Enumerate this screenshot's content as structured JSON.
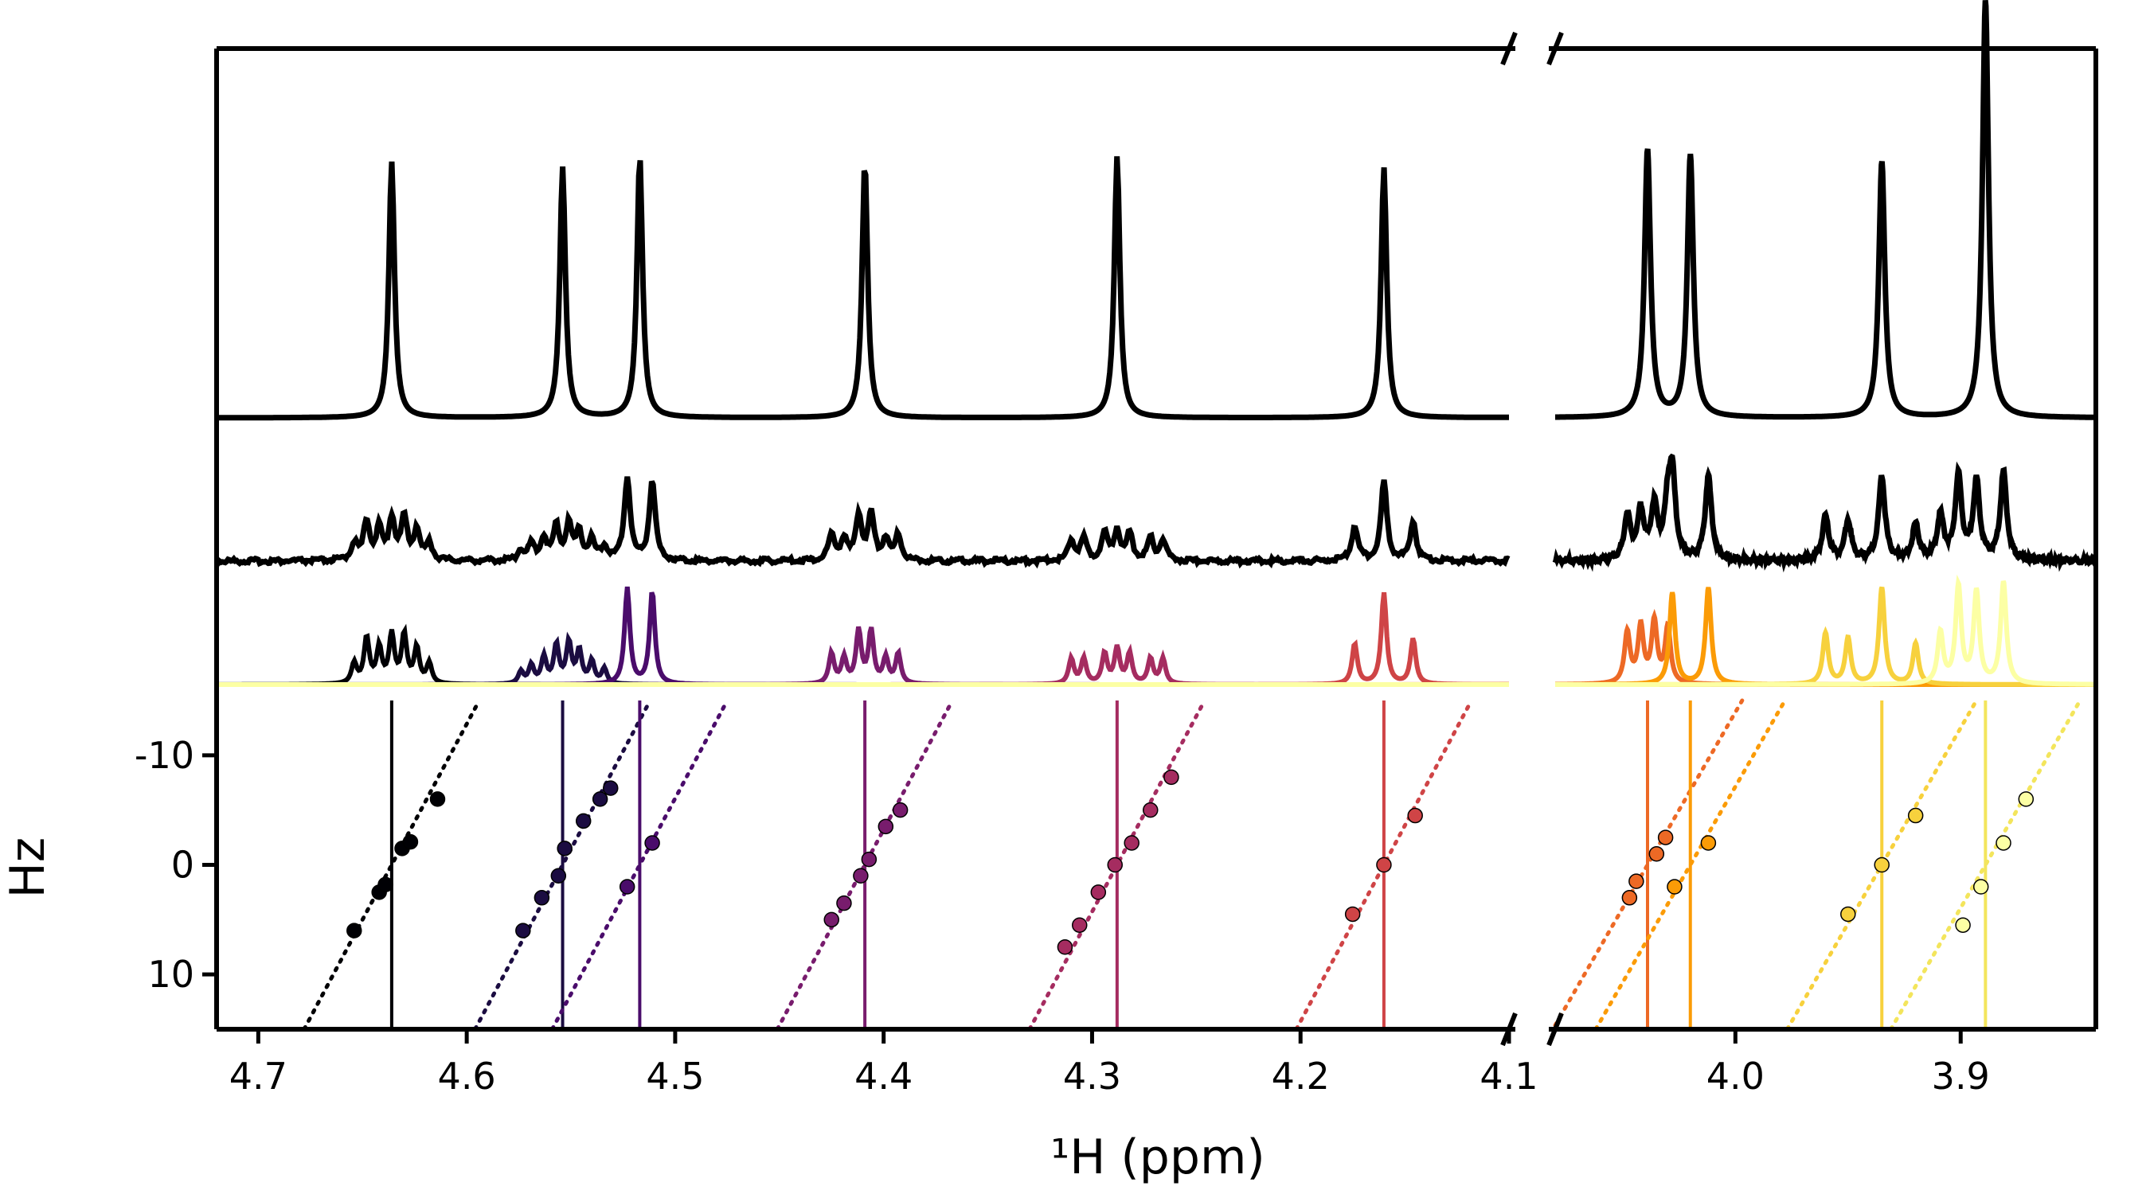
{
  "chart_data": {
    "type": "line",
    "layout": "broken-x-axis spectrum stack with peak-position scatter panel",
    "xlabel": "¹H (ppm)",
    "ylabel": "Hz",
    "x_reversed": true,
    "x_segments": [
      {
        "xlim": [
          4.72,
          4.1
        ],
        "ticks": [
          4.7,
          4.6,
          4.5,
          4.4,
          4.3,
          4.2,
          4.1
        ],
        "tick_labels": [
          "4.7",
          "4.6",
          "4.5",
          "4.4",
          "4.3",
          "4.2",
          "4.1"
        ]
      },
      {
        "xlim": [
          4.08,
          3.84
        ],
        "ticks": [
          4.0,
          3.9
        ],
        "tick_labels": [
          "4.0",
          "3.9"
        ]
      }
    ],
    "scatter_ylim": [
      15,
      -15
    ],
    "scatter_yticks": [
      -10,
      0,
      10
    ],
    "scatter_ytick_labels": [
      "-10",
      "0",
      "10"
    ],
    "colormap": "inferno",
    "top_spectrum_peaks": [
      {
        "ppm": 4.636,
        "height": 0.46
      },
      {
        "ppm": 4.554,
        "height": 0.45
      },
      {
        "ppm": 4.517,
        "height": 0.47
      },
      {
        "ppm": 4.409,
        "height": 0.46
      },
      {
        "ppm": 4.288,
        "height": 0.47
      },
      {
        "ppm": 4.16,
        "height": 0.45
      },
      {
        "ppm": 4.039,
        "height": 0.48
      },
      {
        "ppm": 4.02,
        "height": 0.47
      },
      {
        "ppm": 3.935,
        "height": 0.46
      },
      {
        "ppm": 3.889,
        "height": 0.75
      }
    ],
    "multiplets": [
      {
        "center": 4.636,
        "color": "#000004",
        "slope": 12.3,
        "offset": 0.0,
        "lines": [
          [
            -0.018,
            0.2
          ],
          [
            -0.012,
            0.35
          ],
          [
            -0.006,
            0.48
          ],
          [
            0.0,
            0.48
          ],
          [
            0.006,
            0.35
          ],
          [
            0.012,
            0.45
          ],
          [
            0.018,
            0.2
          ]
        ]
      },
      {
        "center": 4.554,
        "color": "#1b0c41",
        "slope": 12.3,
        "offset": 0.0,
        "lines": [
          [
            -0.02,
            0.15
          ],
          [
            -0.014,
            0.22
          ],
          [
            -0.008,
            0.32
          ],
          [
            -0.003,
            0.4
          ],
          [
            0.003,
            0.38
          ],
          [
            0.009,
            0.26
          ],
          [
            0.015,
            0.18
          ],
          [
            0.02,
            0.12
          ]
        ]
      },
      {
        "center": 4.517,
        "color": "#4a0c6b",
        "slope": 12.3,
        "offset": 0.0,
        "lines": [
          [
            -0.006,
            0.92
          ],
          [
            0.006,
            0.95
          ]
        ]
      },
      {
        "center": 4.409,
        "color": "#781c6d",
        "slope": 12.3,
        "offset": 0.0,
        "lines": [
          [
            -0.016,
            0.3
          ],
          [
            -0.01,
            0.25
          ],
          [
            -0.003,
            0.52
          ],
          [
            0.003,
            0.52
          ],
          [
            0.01,
            0.25
          ],
          [
            0.016,
            0.3
          ]
        ]
      },
      {
        "center": 4.288,
        "color": "#a52c60",
        "slope": 12.3,
        "offset": 0.0,
        "lines": [
          [
            -0.022,
            0.25
          ],
          [
            -0.016,
            0.25
          ],
          [
            -0.006,
            0.3
          ],
          [
            0.0,
            0.35
          ],
          [
            0.006,
            0.3
          ],
          [
            0.016,
            0.25
          ],
          [
            0.022,
            0.25
          ]
        ]
      },
      {
        "center": 4.16,
        "color": "#cf4446",
        "slope": 12.3,
        "offset": 0.0,
        "lines": [
          [
            -0.014,
            0.45
          ],
          [
            0.0,
            0.9
          ],
          [
            0.014,
            0.4
          ]
        ]
      },
      {
        "center": 4.039,
        "color": "#ed6925",
        "slope": 12.3,
        "offset": 0.0,
        "lines": [
          [
            -0.009,
            0.55
          ],
          [
            -0.003,
            0.6
          ],
          [
            0.003,
            0.55
          ],
          [
            0.009,
            0.5
          ]
        ]
      },
      {
        "center": 4.02,
        "color": "#fb9b06",
        "slope": 12.3,
        "offset": 0.0,
        "lines": [
          [
            -0.008,
            0.95
          ],
          [
            0.008,
            0.9
          ]
        ]
      },
      {
        "center": 3.935,
        "color": "#f7d13d",
        "slope": 12.3,
        "offset": 0.0,
        "lines": [
          [
            -0.015,
            0.4
          ],
          [
            0.0,
            0.95
          ],
          [
            0.015,
            0.45
          ],
          [
            0.025,
            0.5
          ]
        ]
      },
      {
        "center": 3.889,
        "color": "#fcffa4",
        "slope": 12.3,
        "offset": 0.0,
        "lines": [
          [
            -0.008,
            1.0
          ],
          [
            0.004,
            0.9
          ],
          [
            0.012,
            0.95
          ],
          [
            0.02,
            0.5
          ]
        ]
      }
    ],
    "peak_scatter": [
      {
        "series": 0,
        "points": [
          [
            4.654,
            6
          ],
          [
            4.642,
            2.5
          ],
          [
            4.639,
            1.8
          ],
          [
            4.631,
            -1.5
          ],
          [
            4.627,
            -2.1
          ],
          [
            4.614,
            -6
          ]
        ]
      },
      {
        "series": 1,
        "points": [
          [
            4.573,
            6.0
          ],
          [
            4.564,
            3.0
          ],
          [
            4.556,
            1.0
          ],
          [
            4.553,
            -1.5
          ],
          [
            4.544,
            -4.0
          ],
          [
            4.536,
            -6.0
          ],
          [
            4.531,
            -7.0
          ]
        ]
      },
      {
        "series": 2,
        "points": [
          [
            4.523,
            2.0
          ],
          [
            4.511,
            -2.0
          ]
        ]
      },
      {
        "series": 3,
        "points": [
          [
            4.425,
            5.0
          ],
          [
            4.419,
            3.5
          ],
          [
            4.411,
            1.0
          ],
          [
            4.407,
            -0.5
          ],
          [
            4.399,
            -3.5
          ],
          [
            4.392,
            -5.0
          ]
        ]
      },
      {
        "series": 4,
        "points": [
          [
            4.313,
            7.5
          ],
          [
            4.306,
            5.5
          ],
          [
            4.297,
            2.5
          ],
          [
            4.289,
            0.0
          ],
          [
            4.281,
            -2.0
          ],
          [
            4.272,
            -5.0
          ],
          [
            4.262,
            -8.0
          ]
        ]
      },
      {
        "series": 5,
        "points": [
          [
            4.175,
            4.5
          ],
          [
            4.16,
            0.0
          ],
          [
            4.145,
            -4.5
          ]
        ]
      },
      {
        "series": 6,
        "points": [
          [
            4.047,
            3.0
          ],
          [
            4.044,
            1.5
          ],
          [
            4.035,
            -1.0
          ],
          [
            4.031,
            -2.5
          ]
        ]
      },
      {
        "series": 7,
        "points": [
          [
            4.027,
            2.0
          ],
          [
            4.012,
            -2.0
          ]
        ]
      },
      {
        "series": 8,
        "points": [
          [
            3.95,
            4.5
          ],
          [
            3.935,
            0.0
          ],
          [
            3.92,
            -4.5
          ]
        ]
      },
      {
        "series": 9,
        "points": [
          [
            3.899,
            5.5
          ],
          [
            3.891,
            2.0
          ],
          [
            3.881,
            -2.0
          ],
          [
            3.871,
            -6.0
          ]
        ]
      }
    ]
  }
}
